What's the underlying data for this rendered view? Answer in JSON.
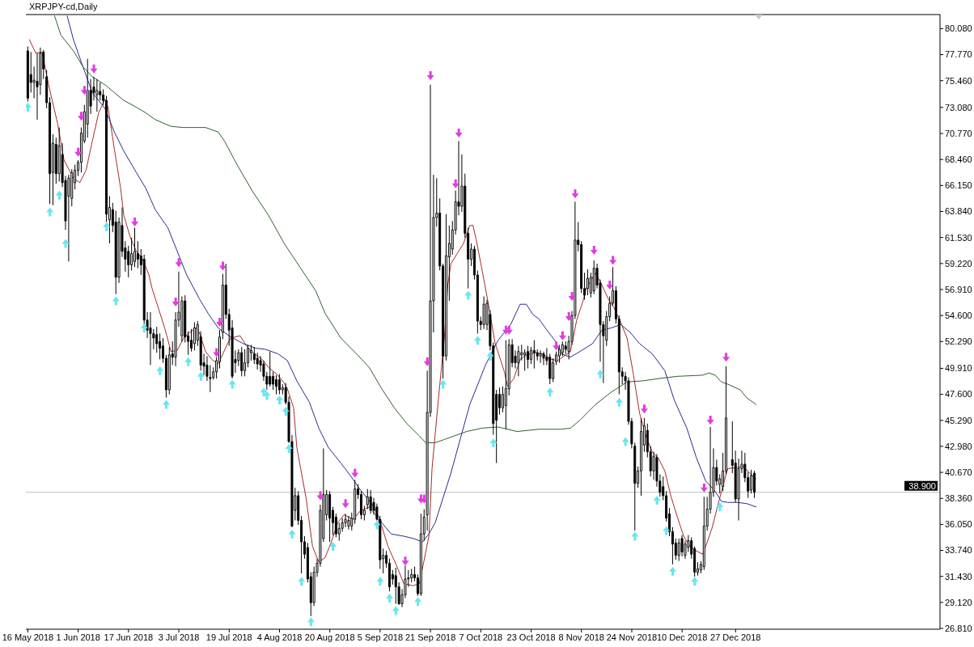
{
  "chart_data": {
    "type": "candlestick",
    "title": "XRPJPY-cd,Daily",
    "color": "#000000",
    "x": [
      "2018-05-16",
      "2018-05-17",
      "2018-05-18",
      "2018-05-19",
      "2018-05-20",
      "2018-05-21",
      "2018-05-22",
      "2018-05-23",
      "2018-05-24",
      "2018-05-25",
      "2018-05-26",
      "2018-05-27",
      "2018-05-28",
      "2018-05-29",
      "2018-05-30",
      "2018-05-31",
      "2018-06-01",
      "2018-06-02",
      "2018-06-03",
      "2018-06-04",
      "2018-06-05",
      "2018-06-06",
      "2018-06-07",
      "2018-06-08",
      "2018-06-09",
      "2018-06-10",
      "2018-06-11",
      "2018-06-12",
      "2018-06-13",
      "2018-06-14",
      "2018-06-15",
      "2018-06-16",
      "2018-06-17",
      "2018-06-18",
      "2018-06-19",
      "2018-06-20",
      "2018-06-21",
      "2018-06-22",
      "2018-06-23",
      "2018-06-24",
      "2018-06-25",
      "2018-06-26",
      "2018-06-27",
      "2018-06-28",
      "2018-06-29",
      "2018-06-30",
      "2018-07-01",
      "2018-07-02",
      "2018-07-03",
      "2018-07-04",
      "2018-07-05",
      "2018-07-06",
      "2018-07-07",
      "2018-07-08",
      "2018-07-09",
      "2018-07-10",
      "2018-07-11",
      "2018-07-12",
      "2018-07-13",
      "2018-07-14",
      "2018-07-15",
      "2018-07-16",
      "2018-07-17",
      "2018-07-18",
      "2018-07-19",
      "2018-07-20",
      "2018-07-21",
      "2018-07-22",
      "2018-07-23",
      "2018-07-24",
      "2018-07-25",
      "2018-07-26",
      "2018-07-27",
      "2018-07-28",
      "2018-07-29",
      "2018-07-30",
      "2018-07-31",
      "2018-08-01",
      "2018-08-02",
      "2018-08-03",
      "2018-08-04",
      "2018-08-05",
      "2018-08-06",
      "2018-08-07",
      "2018-08-08",
      "2018-08-09",
      "2018-08-10",
      "2018-08-11",
      "2018-08-12",
      "2018-08-13",
      "2018-08-14",
      "2018-08-15",
      "2018-08-16",
      "2018-08-17",
      "2018-08-18",
      "2018-08-19",
      "2018-08-20",
      "2018-08-21",
      "2018-08-22",
      "2018-08-23",
      "2018-08-24",
      "2018-08-25",
      "2018-08-26",
      "2018-08-27",
      "2018-08-28",
      "2018-08-29",
      "2018-08-30",
      "2018-08-31",
      "2018-09-01",
      "2018-09-02",
      "2018-09-03",
      "2018-09-04",
      "2018-09-05",
      "2018-09-06",
      "2018-09-07",
      "2018-09-08",
      "2018-09-09",
      "2018-09-10",
      "2018-09-11",
      "2018-09-12",
      "2018-09-13",
      "2018-09-14",
      "2018-09-15",
      "2018-09-16",
      "2018-09-17",
      "2018-09-18",
      "2018-09-19",
      "2018-09-20",
      "2018-09-21",
      "2018-09-22",
      "2018-09-23",
      "2018-09-24",
      "2018-09-25",
      "2018-09-26",
      "2018-09-27",
      "2018-09-28",
      "2018-09-29",
      "2018-09-30",
      "2018-10-01",
      "2018-10-02",
      "2018-10-03",
      "2018-10-04",
      "2018-10-05",
      "2018-10-06",
      "2018-10-07",
      "2018-10-08",
      "2018-10-09",
      "2018-10-10",
      "2018-10-11",
      "2018-10-12",
      "2018-10-13",
      "2018-10-14",
      "2018-10-15",
      "2018-10-16",
      "2018-10-17",
      "2018-10-18",
      "2018-10-19",
      "2018-10-20",
      "2018-10-21",
      "2018-10-22",
      "2018-10-23",
      "2018-10-24",
      "2018-10-25",
      "2018-10-26",
      "2018-10-27",
      "2018-10-28",
      "2018-10-29",
      "2018-10-30",
      "2018-10-31",
      "2018-11-01",
      "2018-11-02",
      "2018-11-03",
      "2018-11-04",
      "2018-11-05",
      "2018-11-06",
      "2018-11-07",
      "2018-11-08",
      "2018-11-09",
      "2018-11-10",
      "2018-11-11",
      "2018-11-12",
      "2018-11-13",
      "2018-11-14",
      "2018-11-15",
      "2018-11-16",
      "2018-11-17",
      "2018-11-18",
      "2018-11-19",
      "2018-11-20",
      "2018-11-21",
      "2018-11-22",
      "2018-11-23",
      "2018-11-24",
      "2018-11-25",
      "2018-11-26",
      "2018-11-27",
      "2018-11-28",
      "2018-11-29",
      "2018-11-30",
      "2018-12-01",
      "2018-12-02",
      "2018-12-03",
      "2018-12-04",
      "2018-12-05",
      "2018-12-06",
      "2018-12-07",
      "2018-12-08",
      "2018-12-09",
      "2018-12-10",
      "2018-12-11",
      "2018-12-12",
      "2018-12-13",
      "2018-12-14",
      "2018-12-15",
      "2018-12-16",
      "2018-12-17",
      "2018-12-18",
      "2018-12-19",
      "2018-12-20",
      "2018-12-21",
      "2018-12-22",
      "2018-12-23",
      "2018-12-24",
      "2018-12-26",
      "2018-12-27",
      "2018-12-28",
      "2018-12-29",
      "2018-12-30",
      "2018-12-31",
      "2019-01-01",
      "2019-01-02"
    ],
    "ohlc": [
      [
        78.1,
        78.5,
        73.6,
        73.9
      ],
      [
        76.0,
        78.0,
        74.4,
        75.3
      ],
      [
        75.3,
        76.7,
        73.9,
        75.5
      ],
      [
        75.4,
        77.9,
        72.0,
        74.9
      ],
      [
        75.1,
        78.4,
        74.2,
        77.9
      ],
      [
        78.0,
        78.2,
        75.6,
        76.5
      ],
      [
        75.8,
        76.4,
        73.0,
        73.5
      ],
      [
        73.5,
        74.0,
        64.5,
        67.2
      ],
      [
        67.3,
        70.7,
        64.4,
        69.9
      ],
      [
        69.8,
        70.4,
        66.3,
        67.2
      ],
      [
        67.2,
        71.3,
        66.5,
        69.7
      ],
      [
        68.9,
        69.9,
        66.0,
        66.4
      ],
      [
        66.6,
        67.0,
        62.2,
        63.0
      ],
      [
        65.2,
        67.1,
        59.4,
        66.8
      ],
      [
        65.0,
        67.6,
        64.3,
        67.3
      ],
      [
        66.4,
        68.0,
        65.8,
        67.5
      ],
      [
        67.5,
        68.4,
        67.0,
        68.2
      ],
      [
        68.2,
        71.3,
        67.3,
        70.8
      ],
      [
        70.1,
        73.3,
        69.9,
        72.7
      ],
      [
        71.6,
        77.4,
        70.4,
        74.6
      ],
      [
        74.6,
        75.6,
        72.5,
        73.2
      ],
      [
        74.9,
        75.8,
        73.7,
        74.4
      ],
      [
        74.2,
        75.6,
        72.7,
        74.6
      ],
      [
        74.5,
        75.3,
        73.7,
        74.2
      ],
      [
        74.2,
        74.7,
        73.3,
        73.7
      ],
      [
        73.7,
        74.1,
        62.9,
        63.6
      ],
      [
        63.1,
        65.2,
        61.0,
        64.2
      ],
      [
        64.0,
        64.6,
        62.0,
        62.6
      ],
      [
        62.9,
        63.9,
        56.5,
        58.0
      ],
      [
        58.0,
        63.3,
        57.5,
        62.9
      ],
      [
        62.6,
        64.2,
        59.8,
        60.3
      ],
      [
        60.6,
        61.2,
        58.5,
        59.6
      ],
      [
        60.3,
        60.8,
        58.0,
        59.1
      ],
      [
        59.1,
        61.5,
        58.6,
        60.1
      ],
      [
        59.4,
        62.4,
        58.9,
        60.3
      ],
      [
        60.1,
        61.2,
        58.8,
        59.6
      ],
      [
        59.9,
        60.5,
        58.2,
        59.1
      ],
      [
        59.6,
        60.0,
        53.8,
        54.2
      ],
      [
        54.2,
        54.9,
        52.6,
        53.3
      ],
      [
        53.5,
        54.9,
        50.2,
        53.0
      ],
      [
        53.0,
        53.4,
        51.6,
        52.6
      ],
      [
        52.9,
        53.6,
        51.3,
        52.1
      ],
      [
        52.3,
        53.0,
        50.7,
        51.7
      ],
      [
        51.9,
        52.6,
        50.4,
        50.8
      ],
      [
        50.8,
        51.1,
        47.3,
        48.0
      ],
      [
        48.0,
        51.8,
        47.6,
        51.1
      ],
      [
        51.2,
        52.3,
        50.2,
        50.9
      ],
      [
        50.9,
        54.9,
        50.1,
        54.2
      ],
      [
        54.2,
        58.5,
        53.6,
        54.9
      ],
      [
        52.8,
        56.3,
        52.3,
        55.9
      ],
      [
        55.9,
        56.4,
        52.2,
        52.7
      ],
      [
        52.8,
        53.2,
        51.1,
        52.3
      ],
      [
        52.4,
        53.4,
        51.4,
        51.7
      ],
      [
        52.1,
        54.0,
        51.5,
        53.5
      ],
      [
        52.4,
        54.1,
        51.9,
        53.8
      ],
      [
        52.7,
        53.2,
        49.7,
        50.2
      ],
      [
        50.4,
        51.2,
        49.3,
        50.1
      ],
      [
        50.2,
        51.0,
        48.8,
        49.2
      ],
      [
        49.1,
        50.2,
        47.8,
        49.0
      ],
      [
        49.1,
        50.0,
        48.9,
        49.6
      ],
      [
        49.6,
        50.9,
        49.0,
        50.6
      ],
      [
        50.5,
        53.3,
        49.9,
        52.7
      ],
      [
        53.1,
        58.3,
        52.5,
        57.3
      ],
      [
        57.3,
        59.2,
        54.3,
        54.7
      ],
      [
        54.7,
        55.2,
        51.9,
        53.3
      ],
      [
        53.5,
        54.2,
        49.0,
        49.2
      ],
      [
        50.7,
        51.5,
        49.5,
        50.4
      ],
      [
        50.6,
        51.6,
        50.1,
        51.3
      ],
      [
        51.3,
        51.8,
        49.2,
        49.7
      ],
      [
        49.7,
        51.6,
        49.2,
        50.4
      ],
      [
        50.4,
        52.0,
        50.0,
        51.7
      ],
      [
        51.3,
        52.0,
        50.6,
        51.5
      ],
      [
        51.2,
        51.8,
        50.3,
        50.7
      ],
      [
        50.8,
        51.3,
        49.8,
        50.3
      ],
      [
        50.6,
        51.0,
        49.6,
        50.2
      ],
      [
        50.3,
        50.6,
        48.8,
        49.2
      ],
      [
        49.2,
        49.6,
        48.0,
        48.5
      ],
      [
        49.2,
        51.4,
        48.3,
        48.5
      ],
      [
        49.2,
        49.6,
        48.0,
        48.5
      ],
      [
        48.9,
        49.3,
        47.6,
        48.3
      ],
      [
        48.9,
        49.4,
        47.6,
        48.0
      ],
      [
        48.0,
        48.5,
        47.6,
        48.2
      ],
      [
        48.2,
        48.6,
        46.7,
        46.9
      ],
      [
        46.9,
        47.4,
        43.3,
        43.4
      ],
      [
        43.4,
        44.0,
        35.8,
        35.9
      ],
      [
        37.3,
        39.3,
        36.4,
        38.6
      ],
      [
        38.6,
        39.0,
        36.0,
        36.4
      ],
      [
        36.4,
        36.8,
        31.7,
        34.5
      ],
      [
        34.5,
        35.0,
        33.0,
        33.4
      ],
      [
        34.0,
        34.4,
        30.9,
        31.2
      ],
      [
        31.4,
        31.8,
        27.9,
        29.1
      ],
      [
        29.1,
        32.3,
        28.8,
        31.8
      ],
      [
        31.8,
        33.0,
        31.4,
        32.6
      ],
      [
        32.6,
        37.8,
        32.3,
        37.3
      ],
      [
        34.8,
        42.8,
        34.5,
        38.7
      ],
      [
        36.9,
        39.1,
        36.4,
        38.7
      ],
      [
        38.7,
        39.0,
        34.5,
        36.6
      ],
      [
        37.3,
        37.6,
        35.1,
        36.2
      ],
      [
        36.7,
        37.0,
        34.9,
        35.2
      ],
      [
        35.2,
        36.2,
        34.6,
        35.7
      ],
      [
        35.7,
        36.6,
        35.4,
        36.2
      ],
      [
        36.2,
        37.0,
        35.8,
        36.5
      ],
      [
        35.9,
        36.8,
        35.6,
        36.4
      ],
      [
        35.9,
        37.1,
        35.5,
        36.6
      ],
      [
        36.5,
        40.0,
        36.1,
        39.2
      ],
      [
        39.2,
        39.6,
        38.3,
        38.7
      ],
      [
        38.7,
        39.0,
        36.5,
        36.9
      ],
      [
        36.9,
        37.7,
        36.4,
        37.3
      ],
      [
        37.8,
        39.2,
        37.4,
        38.5
      ],
      [
        38.5,
        39.1,
        37.0,
        37.3
      ],
      [
        38.0,
        38.4,
        36.9,
        37.3
      ],
      [
        37.6,
        37.9,
        36.4,
        36.5
      ],
      [
        36.5,
        36.8,
        32.1,
        32.9
      ],
      [
        33.0,
        33.9,
        31.7,
        33.3
      ],
      [
        33.3,
        33.7,
        32.2,
        32.6
      ],
      [
        32.6,
        33.0,
        30.1,
        30.5
      ],
      [
        31.6,
        32.0,
        30.7,
        31.2
      ],
      [
        31.5,
        32.2,
        29.0,
        30.5
      ],
      [
        30.5,
        30.9,
        28.9,
        29.0
      ],
      [
        29.0,
        30.3,
        28.7,
        29.8
      ],
      [
        29.8,
        32.4,
        29.5,
        31.2
      ],
      [
        31.2,
        32.0,
        30.5,
        31.3
      ],
      [
        31.3,
        32.1,
        30.9,
        31.6
      ],
      [
        31.6,
        32.3,
        31.0,
        31.3
      ],
      [
        31.3,
        31.6,
        29.7,
        29.9
      ],
      [
        29.9,
        37.0,
        29.7,
        35.2
      ],
      [
        35.2,
        37.4,
        34.6,
        36.7
      ],
      [
        36.9,
        49.7,
        35.5,
        46.0
      ],
      [
        46.0,
        75.1,
        45.6,
        55.9
      ],
      [
        55.9,
        67.1,
        53.1,
        63.3
      ],
      [
        63.3,
        66.8,
        62.5,
        63.7
      ],
      [
        63.7,
        65.0,
        58.6,
        59.0
      ],
      [
        59.0,
        59.2,
        49.0,
        51.0
      ],
      [
        51.0,
        63.6,
        50.6,
        59.9
      ],
      [
        59.8,
        62.6,
        55.9,
        61.0
      ],
      [
        60.5,
        63.0,
        60.0,
        62.2
      ],
      [
        62.2,
        65.7,
        61.8,
        64.7
      ],
      [
        64.7,
        70.1,
        63.5,
        64.3
      ],
      [
        64.3,
        68.9,
        63.8,
        66.1
      ],
      [
        66.1,
        67.2,
        61.5,
        61.9
      ],
      [
        61.9,
        62.4,
        57.0,
        59.6
      ],
      [
        59.6,
        61.0,
        59.0,
        60.5
      ],
      [
        60.5,
        60.8,
        57.8,
        58.2
      ],
      [
        58.2,
        58.6,
        53.0,
        54.1
      ],
      [
        54.1,
        54.5,
        53.3,
        53.8
      ],
      [
        53.8,
        56.3,
        53.4,
        55.6
      ],
      [
        53.8,
        56.0,
        53.3,
        55.7
      ],
      [
        54.7,
        55.1,
        51.5,
        51.9
      ],
      [
        51.9,
        52.2,
        44.0,
        45.0
      ],
      [
        47.6,
        48.0,
        41.5,
        45.3
      ],
      [
        47.6,
        48.2,
        45.8,
        46.4
      ],
      [
        46.4,
        48.3,
        46.0,
        47.6
      ],
      [
        46.6,
        52.4,
        44.5,
        48.1
      ],
      [
        48.1,
        52.5,
        47.5,
        52.0
      ],
      [
        52.0,
        52.5,
        50.0,
        50.4
      ],
      [
        51.0,
        51.5,
        49.9,
        50.4
      ],
      [
        50.4,
        51.9,
        49.2,
        51.4
      ],
      [
        51.1,
        52.0,
        50.6,
        51.3
      ],
      [
        51.1,
        51.6,
        49.7,
        51.3
      ],
      [
        51.4,
        51.9,
        49.9,
        50.7
      ],
      [
        50.7,
        51.8,
        50.3,
        51.5
      ],
      [
        51.5,
        52.4,
        49.9,
        51.3
      ],
      [
        51.3,
        51.6,
        50.6,
        51.0
      ],
      [
        51.0,
        51.5,
        50.4,
        51.2
      ],
      [
        51.2,
        51.4,
        50.2,
        50.8
      ],
      [
        50.9,
        51.7,
        50.2,
        50.6
      ],
      [
        50.9,
        51.2,
        48.5,
        49.0
      ],
      [
        49.0,
        50.8,
        48.7,
        50.4
      ],
      [
        50.5,
        51.4,
        50.2,
        51.1
      ],
      [
        51.0,
        52.0,
        50.4,
        51.6
      ],
      [
        51.3,
        52.3,
        51.0,
        52.0
      ],
      [
        51.9,
        52.3,
        51.2,
        51.6
      ],
      [
        51.4,
        52.8,
        50.7,
        52.3
      ],
      [
        52.3,
        55.0,
        52.0,
        54.6
      ],
      [
        54.6,
        64.7,
        54.3,
        61.3
      ],
      [
        61.3,
        62.9,
        60.3,
        60.9
      ],
      [
        60.9,
        61.2,
        56.6,
        57.0
      ],
      [
        57.0,
        58.4,
        56.0,
        56.4
      ],
      [
        57.0,
        58.7,
        56.4,
        57.9
      ],
      [
        56.6,
        58.4,
        56.2,
        58.0
      ],
      [
        56.8,
        59.5,
        56.5,
        58.8
      ],
      [
        58.8,
        59.2,
        57.0,
        57.3
      ],
      [
        57.5,
        57.8,
        50.5,
        53.8
      ],
      [
        53.8,
        54.1,
        48.6,
        52.8
      ],
      [
        52.4,
        55.0,
        51.9,
        54.5
      ],
      [
        54.5,
        56.3,
        54.1,
        55.7
      ],
      [
        55.7,
        58.9,
        55.5,
        56.8
      ],
      [
        56.8,
        57.2,
        53.9,
        54.3
      ],
      [
        54.3,
        54.6,
        47.6,
        49.6
      ],
      [
        49.6,
        50.0,
        48.5,
        49.2
      ],
      [
        49.2,
        49.6,
        48.0,
        48.8
      ],
      [
        48.8,
        49.1,
        44.9,
        45.2
      ],
      [
        45.2,
        45.5,
        42.8,
        43.2
      ],
      [
        43.0,
        43.3,
        35.5,
        39.7
      ],
      [
        39.7,
        41.2,
        39.3,
        40.8
      ],
      [
        40.8,
        45.5,
        38.6,
        44.3
      ],
      [
        43.1,
        45.5,
        42.5,
        44.8
      ],
      [
        44.4,
        45.0,
        42.0,
        42.5
      ],
      [
        42.5,
        43.0,
        40.3,
        40.8
      ],
      [
        40.8,
        42.5,
        40.0,
        42.1
      ],
      [
        42.0,
        42.3,
        39.4,
        39.9
      ],
      [
        39.9,
        40.5,
        38.5,
        38.9
      ],
      [
        39.4,
        40.3,
        38.2,
        38.6
      ],
      [
        38.6,
        39.0,
        36.3,
        36.6
      ],
      [
        37.0,
        37.5,
        35.0,
        35.4
      ],
      [
        35.4,
        35.8,
        32.5,
        34.3
      ],
      [
        34.4,
        34.8,
        32.9,
        33.3
      ],
      [
        33.3,
        34.8,
        32.8,
        34.4
      ],
      [
        34.8,
        35.1,
        33.2,
        33.6
      ],
      [
        33.3,
        34.6,
        33.0,
        34.3
      ],
      [
        34.0,
        35.1,
        33.6,
        34.6
      ],
      [
        34.6,
        34.9,
        33.0,
        33.4
      ],
      [
        33.9,
        34.1,
        31.4,
        31.8
      ],
      [
        31.8,
        32.7,
        31.5,
        32.1
      ],
      [
        32.0,
        32.8,
        31.7,
        32.5
      ],
      [
        32.3,
        38.5,
        32.0,
        35.9
      ],
      [
        35.9,
        38.5,
        35.5,
        37.4
      ],
      [
        37.4,
        44.7,
        37.0,
        38.9
      ],
      [
        38.9,
        42.8,
        38.5,
        41.1
      ],
      [
        41.1,
        41.8,
        39.5,
        39.9
      ],
      [
        39.6,
        40.5,
        38.8,
        40.1
      ],
      [
        39.4,
        42.4,
        39.0,
        40.8
      ],
      [
        40.8,
        50.1,
        40.5,
        45.5
      ],
      [
        41.8,
        45.2,
        40.6,
        41.3
      ],
      [
        41.5,
        42.6,
        38.0,
        38.3
      ],
      [
        38.3,
        41.9,
        36.4,
        41.0
      ],
      [
        41.0,
        42.6,
        40.6,
        41.4
      ],
      [
        41.4,
        42.4,
        39.8,
        40.2
      ],
      [
        40.2,
        40.7,
        38.4,
        39.0
      ],
      [
        39.1,
        40.9,
        38.8,
        40.4
      ],
      [
        40.6,
        40.8,
        38.4,
        38.9
      ]
    ],
    "series": [
      {
        "type": "line",
        "color": "#a52a2a",
        "x": [
          "2018-05-16T12:00",
          "2018-05-18T12:00",
          "2018-05-20T12:00",
          "2018-05-22T12:00",
          "2018-05-25T12:00",
          "2018-05-27T12:00",
          "2018-05-30T12:00",
          "2018-06-01T12:00",
          "2018-06-03T12:00",
          "2018-06-05T12:00",
          "2018-06-07T12:00",
          "2018-06-09T12:00",
          "2018-06-10T12:00",
          "2018-06-12T12:00",
          "2018-06-14T12:00",
          "2018-06-15T12:00",
          "2018-06-17T12:00",
          "2018-06-19T12:00",
          "2018-06-21T12:00",
          "2018-06-23T12:00",
          "2018-06-24T12:00",
          "2018-06-28T12:00",
          "2018-06-30T12:00",
          "2018-07-02T12:00",
          "2018-07-04T12:00",
          "2018-07-06T12:00",
          "2018-07-08T12:00",
          "2018-07-09T12:00",
          "2018-07-11T12:00",
          "2018-07-13T12:00",
          "2018-07-15T12:00",
          "2018-07-16T12:00",
          "2018-07-18T12:00",
          "2018-07-19T12:00",
          "2018-07-22T12:00",
          "2018-07-24T12:00",
          "2018-07-26T12:00",
          "2018-07-29T12:00",
          "2018-07-31T12:00",
          "2018-08-03T12:00",
          "2018-08-05T12:00",
          "2018-08-06T12:00",
          "2018-08-08T12:00",
          "2018-08-09T12:00",
          "2018-08-12T12:00",
          "2018-08-14T12:00",
          "2018-08-16T12:00",
          "2018-08-18T12:00",
          "2018-08-20T12:00",
          "2018-08-22T12:00",
          "2018-08-24T12:00",
          "2018-08-27T12:00",
          "2018-08-29T12:00",
          "2018-09-01T12:00",
          "2018-09-03T12:00",
          "2018-09-05T12:00",
          "2018-09-07T12:00",
          "2018-09-10T12:00",
          "2018-09-12T12:00",
          "2018-09-15T12:00",
          "2018-09-17T12:00",
          "2018-09-18T12:00",
          "2018-09-20T12:00",
          "2018-09-21T12:00",
          "2018-09-23T12:00",
          "2018-09-25T12:00",
          "2018-09-26T12:00",
          "2018-09-27T12:00",
          "2018-09-29T12:00",
          "2018-10-01T12:00",
          "2018-10-03T12:00",
          "2018-10-04T12:00",
          "2018-10-05T12:00",
          "2018-10-07T12:00",
          "2018-10-09T12:00",
          "2018-10-11T12:00",
          "2018-10-14T12:00",
          "2018-10-15T12:00",
          "2018-10-17T12:00",
          "2018-10-19T12:00",
          "2018-10-21T12:00",
          "2018-10-24T12:00",
          "2018-10-26T12:00",
          "2018-10-29T12:00",
          "2018-10-31T12:00",
          "2018-11-04T12:00",
          "2018-11-06T12:00",
          "2018-11-08T12:00",
          "2018-11-09T12:00",
          "2018-11-12T12:00",
          "2018-11-14T12:00",
          "2018-11-16T12:00",
          "2018-11-18T12:00",
          "2018-11-20T12:00",
          "2018-11-22T12:00",
          "2018-11-24T12:00",
          "2018-11-26T12:00",
          "2018-11-28T12:00",
          "2018-11-30T12:00",
          "2018-12-02T12:00",
          "2018-12-04T12:00",
          "2018-12-06T12:00",
          "2018-12-08T12:00",
          "2018-12-10T12:00",
          "2018-12-12T12:00",
          "2018-12-14T12:00",
          "2018-12-16T12:00",
          "2018-12-17T12:00",
          "2018-12-19T12:00",
          "2018-12-21T12:00",
          "2018-12-23T12:00",
          "2018-12-24T12:00",
          "2018-12-27T12:00",
          "2018-12-29T12:00",
          "2018-12-31T12:00",
          "2019-01-02T12:00"
        ],
        "values": [
          79.1,
          77.9,
          78.0,
          75.2,
          71.6,
          68.4,
          66.8,
          66.4,
          67.5,
          70.1,
          72.6,
          73.8,
          73.1,
          69.4,
          65.9,
          63.5,
          61.6,
          60.3,
          59.6,
          58.2,
          57.0,
          53.5,
          51.4,
          51.5,
          52.6,
          53.1,
          53.5,
          53.1,
          51.4,
          50.7,
          50.3,
          50.9,
          52.1,
          52.6,
          52.8,
          51.9,
          51.3,
          50.7,
          50.0,
          49.3,
          48.6,
          48.1,
          46.4,
          42.9,
          38.3,
          34.1,
          32.7,
          33.1,
          34.5,
          36.2,
          36.9,
          36.5,
          37.2,
          37.6,
          36.9,
          35.9,
          34.1,
          32.2,
          30.8,
          30.6,
          30.8,
          32.2,
          35.0,
          41.0,
          47.1,
          52.9,
          57.3,
          59.2,
          60.1,
          61.0,
          62.6,
          62.6,
          61.4,
          58.5,
          55.5,
          52.2,
          49.6,
          48.3,
          49.0,
          50.7,
          51.1,
          51.3,
          51.2,
          50.7,
          50.6,
          51.4,
          54.2,
          55.9,
          57.0,
          58.4,
          57.3,
          56.1,
          55.2,
          54.0,
          52.6,
          49.4,
          45.9,
          43.9,
          42.5,
          41.9,
          40.8,
          38.5,
          36.7,
          35.0,
          34.1,
          33.7,
          33.4,
          34.1,
          35.7,
          37.9,
          40.0,
          41.0,
          41.1,
          41.2,
          40.6,
          40.1
        ]
      },
      {
        "type": "line",
        "color": "#2b2b8c",
        "x": [
          "2018-05-28T12:00",
          "2018-05-30T12:00",
          "2018-06-02T12:00",
          "2018-06-05T12:00",
          "2018-06-09T12:00",
          "2018-06-12T12:00",
          "2018-06-15T12:00",
          "2018-06-19T12:00",
          "2018-06-22T12:00",
          "2018-06-25T12:00",
          "2018-06-29T12:00",
          "2018-07-02T12:00",
          "2018-07-05T12:00",
          "2018-07-09T12:00",
          "2018-07-12T12:00",
          "2018-07-15T12:00",
          "2018-07-19T12:00",
          "2018-07-23T12:00",
          "2018-07-27T12:00",
          "2018-07-30T12:00",
          "2018-08-03T12:00",
          "2018-08-06T12:00",
          "2018-08-09T12:00",
          "2018-08-13T12:00",
          "2018-08-16T12:00",
          "2018-08-19T12:00",
          "2018-08-23T12:00",
          "2018-08-26T12:00",
          "2018-08-29T12:00",
          "2018-09-02T12:00",
          "2018-09-05T12:00",
          "2018-09-08T12:00",
          "2018-09-12T12:00",
          "2018-09-15T12:00",
          "2018-09-18T12:00",
          "2018-09-20T12:00",
          "2018-09-22T12:00",
          "2018-09-27T12:00",
          "2018-10-03T12:00",
          "2018-10-08T12:00",
          "2018-10-12T12:00",
          "2018-10-16T12:00",
          "2018-10-19T12:00",
          "2018-10-21T12:00",
          "2018-10-23T12:00",
          "2018-10-25T12:00",
          "2018-10-27T12:00",
          "2018-10-30T12:00",
          "2018-11-01T12:00",
          "2018-11-04T12:00",
          "2018-11-07T12:00",
          "2018-11-11T12:00",
          "2018-11-14T12:00",
          "2018-11-17T12:00",
          "2018-11-20T12:00",
          "2018-11-23T12:00",
          "2018-11-26T12:00",
          "2018-11-30T12:00",
          "2018-12-04T12:00",
          "2018-12-07T12:00",
          "2018-12-11T12:00",
          "2018-12-14T12:00",
          "2018-12-17T12:00",
          "2018-12-20T12:00",
          "2018-12-22T12:00",
          "2018-12-24T12:00",
          "2018-12-27T12:00",
          "2018-12-30T12:00",
          "2019-01-02T12:00"
        ],
        "values": [
          81.2,
          79.1,
          76.7,
          74.4,
          73.0,
          70.9,
          69.2,
          67.3,
          65.9,
          64.0,
          62.4,
          60.3,
          58.2,
          56.1,
          54.7,
          53.5,
          52.7,
          52.1,
          51.7,
          51.6,
          51.2,
          50.6,
          48.8,
          46.9,
          44.6,
          42.9,
          41.5,
          40.4,
          39.2,
          37.8,
          36.2,
          35.2,
          35.0,
          34.8,
          34.5,
          35.2,
          36.2,
          40.6,
          46.7,
          50.2,
          52.4,
          53.8,
          55.6,
          55.6,
          54.7,
          54.3,
          53.5,
          52.4,
          51.2,
          50.9,
          51.4,
          52.1,
          53.3,
          53.5,
          53.8,
          53.1,
          52.1,
          51.2,
          49.7,
          47.1,
          44.6,
          42.0,
          39.9,
          39.0,
          38.1,
          38.0,
          38.0,
          37.9,
          37.6
        ]
      },
      {
        "type": "line",
        "color": "#2f5f2f",
        "x": [
          "2018-05-24T12:00",
          "2018-05-26T12:00",
          "2018-05-30T12:00",
          "2018-06-02T12:00",
          "2018-06-05T12:00",
          "2018-06-09T12:00",
          "2018-06-12T12:00",
          "2018-06-15T12:00",
          "2018-06-19T12:00",
          "2018-06-22T12:00",
          "2018-06-25T12:00",
          "2018-06-30T12:00",
          "2018-07-04T12:00",
          "2018-07-11T12:00",
          "2018-07-15T12:00",
          "2018-07-17T12:00",
          "2018-07-21T12:00",
          "2018-07-26T12:00",
          "2018-07-31T12:00",
          "2018-08-05T12:00",
          "2018-08-10T12:00",
          "2018-08-15T12:00",
          "2018-08-18T12:00",
          "2018-08-23T12:00",
          "2018-08-28T12:00",
          "2018-09-01T12:00",
          "2018-09-05T12:00",
          "2018-09-09T12:00",
          "2018-09-13T12:00",
          "2018-09-17T12:00",
          "2018-09-19T12:00",
          "2018-09-22T12:00",
          "2018-09-25T12:00",
          "2018-10-02T12:00",
          "2018-10-07T12:00",
          "2018-10-12T12:00",
          "2018-10-18T12:00",
          "2018-10-25T12:00",
          "2018-11-01T12:00",
          "2018-11-04T12:00",
          "2018-11-07T12:00",
          "2018-11-12T12:00",
          "2018-11-17T12:00",
          "2018-11-22T12:00",
          "2018-11-27T12:00",
          "2018-12-02T12:00",
          "2018-12-08T12:00",
          "2018-12-16T12:00",
          "2018-12-18T12:00",
          "2018-12-20T12:00",
          "2018-12-22T12:00",
          "2018-12-24T12:00",
          "2018-12-28T12:00",
          "2018-12-30T12:00",
          "2019-01-02T12:00"
        ],
        "values": [
          81.2,
          79.5,
          78.1,
          76.7,
          75.8,
          75.1,
          74.4,
          73.7,
          73.1,
          72.6,
          72.0,
          71.4,
          71.3,
          71.3,
          70.9,
          70.1,
          68.0,
          65.6,
          63.5,
          61.0,
          58.9,
          56.8,
          54.8,
          52.6,
          51.2,
          50.0,
          48.1,
          46.4,
          45.0,
          43.9,
          43.3,
          43.3,
          43.6,
          44.3,
          44.6,
          44.7,
          44.3,
          44.5,
          44.5,
          44.6,
          45.3,
          46.7,
          47.8,
          48.7,
          48.8,
          49.0,
          49.2,
          49.3,
          49.5,
          49.3,
          48.7,
          48.5,
          48.0,
          47.3,
          46.7
        ]
      },
      {
        "type": "scatter",
        "color": "#e03ce0",
        "marker": "triangle",
        "x": [
          "2018-06-01",
          "2018-06-02",
          "2018-06-03",
          "2018-06-06",
          "2018-06-19",
          "2018-07-02",
          "2018-07-03",
          "2018-07-15",
          "2018-07-16",
          "2018-07-17",
          "2018-08-17",
          "2018-08-25",
          "2018-08-28",
          "2018-09-13",
          "2018-09-18",
          "2018-09-19",
          "2018-09-20",
          "2018-09-21",
          "2018-09-29",
          "2018-09-30",
          "2018-10-15",
          "2018-10-16",
          "2018-10-31",
          "2018-11-02",
          "2018-11-04",
          "2018-11-05",
          "2018-11-06",
          "2018-11-12",
          "2018-11-17",
          "2018-11-18",
          "2018-11-28",
          "2018-12-17",
          "2018-12-19",
          "2018-12-24"
        ],
        "values": [
          69.1,
          72.3,
          74.6,
          76.5,
          62.9,
          55.8,
          59.3,
          51.3,
          54.0,
          59.0,
          38.6,
          37.9,
          40.6,
          32.8,
          38.3,
          38.3,
          50.5,
          75.9,
          66.3,
          70.8,
          53.3,
          53.3,
          51.9,
          52.8,
          54.5,
          56.3,
          65.4,
          60.4,
          57.3,
          59.5,
          46.3,
          39.3,
          45.3,
          50.9
        ]
      },
      {
        "type": "scatter",
        "color": "#66e6f0",
        "marker": "triangle",
        "x": [
          "2018-05-16",
          "2018-05-23",
          "2018-05-26",
          "2018-05-28",
          "2018-06-10",
          "2018-06-13",
          "2018-06-22",
          "2018-06-27",
          "2018-06-29",
          "2018-07-06",
          "2018-07-10",
          "2018-07-20",
          "2018-07-30",
          "2018-07-31",
          "2018-08-04",
          "2018-08-06",
          "2018-08-07",
          "2018-08-08",
          "2018-08-11",
          "2018-08-14",
          "2018-08-21",
          "2018-09-04",
          "2018-09-05",
          "2018-09-08",
          "2018-09-10",
          "2018-09-17",
          "2018-09-25",
          "2018-10-03",
          "2018-10-06",
          "2018-10-10",
          "2018-10-11",
          "2018-10-29",
          "2018-11-14",
          "2018-11-20",
          "2018-11-22",
          "2018-11-25",
          "2018-12-02",
          "2018-12-05",
          "2018-12-07",
          "2018-12-14",
          "2018-12-22"
        ],
        "values": [
          73.1,
          63.8,
          65.3,
          61.0,
          62.5,
          55.9,
          53.5,
          49.7,
          46.7,
          50.5,
          49.2,
          48.5,
          47.8,
          47.5,
          47.1,
          46.1,
          42.8,
          35.2,
          31.0,
          27.4,
          34.1,
          36.0,
          31.0,
          29.5,
          28.4,
          29.2,
          48.5,
          56.4,
          52.4,
          51.0,
          43.3,
          47.8,
          49.4,
          46.9,
          43.4,
          35.0,
          38.2,
          35.5,
          31.9,
          31.0,
          37.6
        ]
      }
    ],
    "xlim": [
      "2018-05-15T09:00",
      "2019-03-02"
    ],
    "xticks": [
      {
        "value": "2018-05-16",
        "label": "16 May 2018"
      },
      {
        "value": "2018-06-01",
        "label": "1 Jun 2018"
      },
      {
        "value": "2018-06-17",
        "label": "17 Jun 2018"
      },
      {
        "value": "2018-07-03",
        "label": "3 Jul 2018"
      },
      {
        "value": "2018-07-19",
        "label": "19 Jul 2018"
      },
      {
        "value": "2018-08-04",
        "label": "4 Aug 2018"
      },
      {
        "value": "2018-08-20",
        "label": "20 Aug 2018"
      },
      {
        "value": "2018-09-05",
        "label": "5 Sep 2018"
      },
      {
        "value": "2018-09-21",
        "label": "21 Sep 2018"
      },
      {
        "value": "2018-10-07",
        "label": "7 Oct 2018"
      },
      {
        "value": "2018-10-23",
        "label": "23 Oct 2018"
      },
      {
        "value": "2018-11-08",
        "label": "8 Nov 2018"
      },
      {
        "value": "2018-11-24",
        "label": "24 Nov 2018"
      },
      {
        "value": "2018-12-10",
        "label": "10 Dec 2018"
      },
      {
        "value": "2018-12-27",
        "label": "27 Dec 2018"
      }
    ],
    "ylim": [
      26.74,
      81.33
    ],
    "yticks": [
      {
        "value": 80.08,
        "label": "80.080"
      },
      {
        "value": 77.77,
        "label": "77.770"
      },
      {
        "value": 75.46,
        "label": "75.460"
      },
      {
        "value": 73.08,
        "label": "73.080"
      },
      {
        "value": 70.77,
        "label": "70.770"
      },
      {
        "value": 68.46,
        "label": "68.460"
      },
      {
        "value": 66.15,
        "label": "66.150"
      },
      {
        "value": 63.84,
        "label": "63.840"
      },
      {
        "value": 61.53,
        "label": "61.530"
      },
      {
        "value": 59.22,
        "label": "59.220"
      },
      {
        "value": 56.91,
        "label": "56.910"
      },
      {
        "value": 54.6,
        "label": "54.600"
      },
      {
        "value": 52.29,
        "label": "52.290"
      },
      {
        "value": 49.91,
        "label": "49.910"
      },
      {
        "value": 47.6,
        "label": "47.600"
      },
      {
        "value": 45.29,
        "label": "45.290"
      },
      {
        "value": 42.98,
        "label": "42.980"
      },
      {
        "value": 40.67,
        "label": "40.670"
      },
      {
        "value": 38.36,
        "label": "38.360"
      },
      {
        "value": 36.05,
        "label": "36.050"
      },
      {
        "value": 33.74,
        "label": "33.740"
      },
      {
        "value": 31.43,
        "label": "31.430"
      },
      {
        "value": 29.12,
        "label": "29.120"
      },
      {
        "value": 26.81,
        "label": "26.810"
      }
    ],
    "ref_lines": [
      {
        "axis": "y",
        "value": 38.9,
        "label": "38.900",
        "color": "#c0c0c0"
      }
    ]
  }
}
